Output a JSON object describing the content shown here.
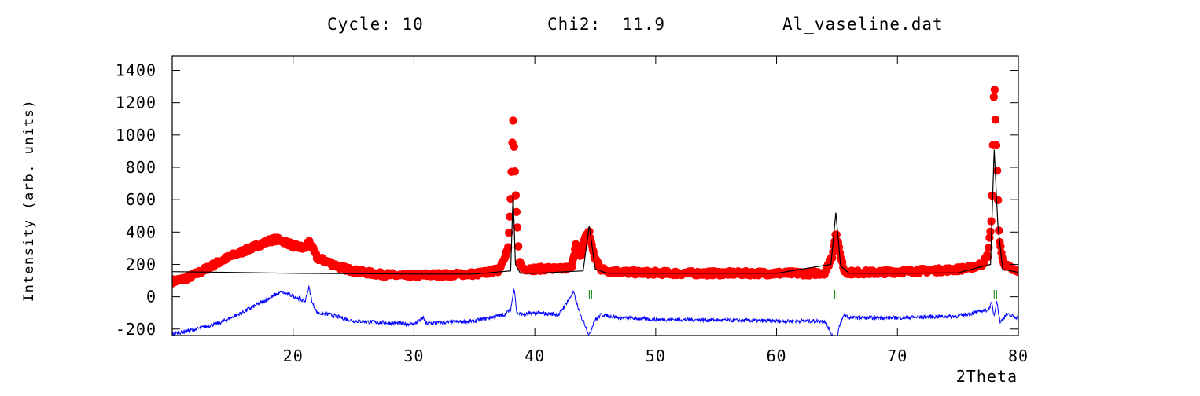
{
  "header": {
    "cycle": "Cycle: 10",
    "chi2": "Chi2:  11.9",
    "filename": "Al_vaseline.dat"
  },
  "chart_data": {
    "type": "line",
    "title": "",
    "xlabel": "2Theta",
    "ylabel": "Intensity (arb. units)",
    "xlim": [
      10,
      80
    ],
    "ylim": [
      -240,
      1490
    ],
    "x_ticks": [
      20,
      30,
      40,
      50,
      60,
      70,
      80
    ],
    "y_ticks": [
      -200,
      0,
      200,
      400,
      600,
      800,
      1000,
      1200,
      1400
    ],
    "x_tick_labels": [
      "20",
      "30",
      "40",
      "50",
      "60",
      "70",
      "80"
    ],
    "y_tick_labels": [
      "-200",
      "0",
      "200",
      "400",
      "600",
      "800",
      "1000",
      "1200",
      "1400"
    ],
    "grid": false,
    "legend": "none",
    "colors": {
      "observed": "#ff0000",
      "calculated": "#000000",
      "difference": "#0000ff",
      "bragg": "#008000"
    },
    "series": [
      {
        "kind": "observed",
        "style": "markers",
        "x": [
          10,
          11,
          12,
          13,
          14,
          15,
          16,
          17,
          18,
          18.5,
          19,
          19.5,
          20,
          21,
          21.3,
          22,
          23,
          24,
          25,
          26,
          27,
          28,
          29,
          30,
          31,
          32,
          33,
          34,
          35,
          36,
          37,
          37.8,
          38.0,
          38.2,
          38.4,
          38.7,
          39,
          40,
          41,
          42,
          43,
          43.4,
          43.8,
          44.2,
          44.5,
          44.9,
          45.5,
          46,
          48,
          50,
          52,
          54,
          56,
          58,
          60,
          62,
          63,
          64,
          64.6,
          64.9,
          65.2,
          65.6,
          66,
          68,
          70,
          72,
          74,
          75,
          76,
          77,
          77.5,
          77.8,
          78.0,
          78.2,
          78.4,
          78.7,
          79,
          79.5,
          80
        ],
        "y": [
          95,
          110,
          140,
          180,
          220,
          255,
          285,
          315,
          345,
          355,
          350,
          335,
          315,
          300,
          345,
          240,
          210,
          180,
          160,
          150,
          140,
          135,
          130,
          130,
          135,
          135,
          135,
          140,
          140,
          150,
          165,
          300,
          600,
          1100,
          650,
          220,
          175,
          170,
          175,
          170,
          180,
          320,
          250,
          380,
          400,
          250,
          170,
          160,
          150,
          148,
          145,
          145,
          145,
          145,
          145,
          145,
          145,
          150,
          250,
          400,
          280,
          160,
          150,
          150,
          155,
          160,
          165,
          170,
          180,
          200,
          260,
          500,
          1360,
          900,
          380,
          220,
          190,
          170,
          150
        ]
      },
      {
        "kind": "calculated",
        "style": "line",
        "x": [
          10,
          15,
          20,
          30,
          35,
          38,
          38.2,
          38.4,
          38.8,
          40,
          44,
          44.5,
          45,
          46,
          50,
          60,
          64.5,
          64.9,
          65.3,
          66,
          70,
          75,
          77.7,
          78.0,
          78.3,
          78.7,
          80
        ],
        "y": [
          155,
          150,
          145,
          140,
          140,
          160,
          640,
          200,
          145,
          145,
          160,
          440,
          170,
          145,
          145,
          145,
          200,
          520,
          190,
          145,
          145,
          148,
          200,
          910,
          450,
          170,
          150
        ]
      },
      {
        "kind": "difference",
        "style": "line",
        "x": [
          10,
          12,
          14,
          16,
          17,
          18,
          19,
          20,
          21,
          21.3,
          21.6,
          22,
          23,
          25,
          30,
          30.8,
          31,
          35,
          37.5,
          38.0,
          38.3,
          38.5,
          39,
          40,
          42,
          43.2,
          43.5,
          43.8,
          44.2,
          44.5,
          44.9,
          45.5,
          47,
          50,
          55,
          60,
          64,
          64.8,
          65,
          65.2,
          65.6,
          66,
          70,
          75,
          77.5,
          77.8,
          78.0,
          78.2,
          78.5,
          79,
          80
        ],
        "y": [
          -230,
          -200,
          -160,
          -90,
          -50,
          -10,
          30,
          5,
          -30,
          60,
          -40,
          -100,
          -110,
          -150,
          -170,
          -130,
          -165,
          -150,
          -110,
          -80,
          60,
          -100,
          -110,
          -100,
          -110,
          30,
          -50,
          -120,
          -180,
          -240,
          -150,
          -110,
          -130,
          -140,
          -145,
          -150,
          -150,
          -270,
          -260,
          -180,
          -110,
          -130,
          -130,
          -120,
          -80,
          -40,
          -120,
          -20,
          -160,
          -110,
          -130
        ]
      }
    ],
    "bragg_positions": [
      44.6,
      64.9,
      78.1
    ]
  }
}
